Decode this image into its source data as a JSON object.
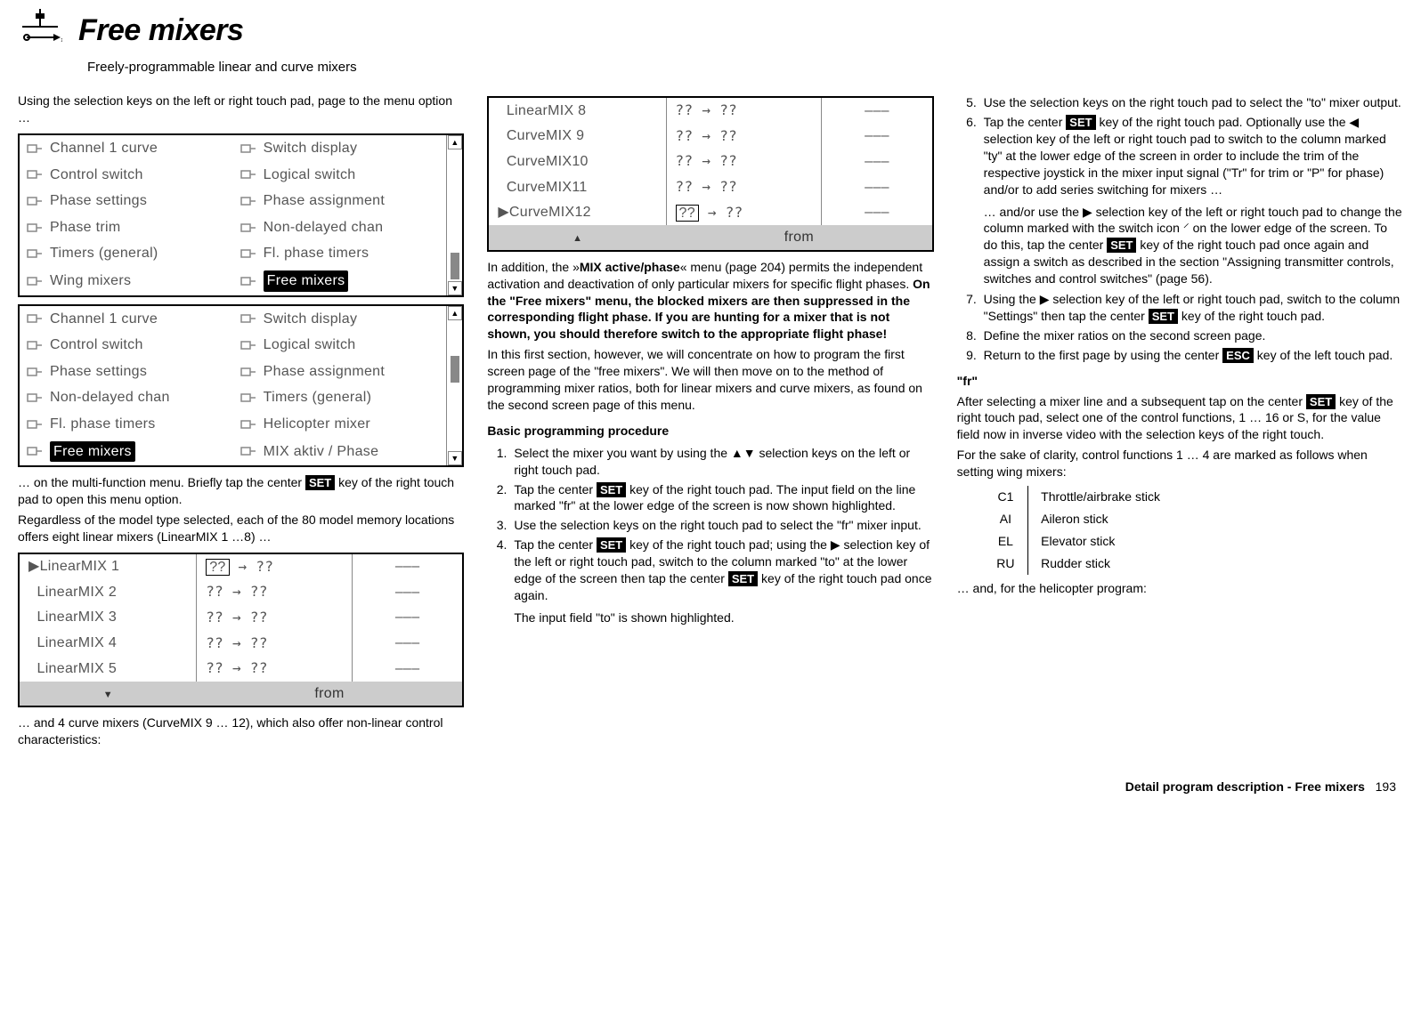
{
  "header": {
    "title": "Free mixers",
    "subtitle": "Freely-programmable linear and curve mixers"
  },
  "col1": {
    "intro": "Using the selection keys on the left or right touch pad, page to the menu option …",
    "menuA": {
      "left": [
        "Channel 1 curve",
        "Control switch",
        "Phase settings",
        "Phase trim",
        "Timers (general)",
        "Wing mixers"
      ],
      "right": [
        "Switch display",
        "Logical switch",
        "Phase assignment",
        "Non-delayed chan",
        "Fl. phase timers",
        "Free mixers"
      ],
      "highlight_right_index": 5
    },
    "menuB": {
      "left": [
        "Channel 1 curve",
        "Control switch",
        "Phase settings",
        "Non-delayed chan",
        "Fl. phase timers",
        "Free mixers"
      ],
      "right": [
        "Switch display",
        "Logical switch",
        "Phase assignment",
        "Timers (general)",
        "Helicopter mixer",
        "MIX aktiv / Phase"
      ],
      "highlight_left_index": 5
    },
    "para1a": "… on the multi-function menu. Briefly tap the center ",
    "para1b": " key of the right touch pad to open this menu option.",
    "para2": "Regardless of the model type selected, each of the 80 model memory locations offers eight linear mixers (LinearMIX 1 …8) …",
    "table1": {
      "rows": [
        {
          "name": "LinearMIX  1",
          "val": "?? → ??",
          "sel": true,
          "marker": true
        },
        {
          "name": "LinearMIX  2",
          "val": "?? → ??"
        },
        {
          "name": "LinearMIX  3",
          "val": "?? → ??"
        },
        {
          "name": "LinearMIX  4",
          "val": "?? → ??"
        },
        {
          "name": "LinearMIX  5",
          "val": "?? → ??"
        }
      ],
      "footer_arrow": "▼",
      "footer_label": "from"
    },
    "para3": "… and 4 curve mixers (CurveMIX 9 … 12), which also offer non-linear control characteristics:"
  },
  "col2": {
    "table2": {
      "rows": [
        {
          "name": "LinearMIX   8",
          "val": "?? → ??"
        },
        {
          "name": "CurveMIX  9",
          "val": "?? → ??"
        },
        {
          "name": "CurveMIX10",
          "val": "?? → ??"
        },
        {
          "name": "CurveMIX11",
          "val": "?? → ??"
        },
        {
          "name": "CurveMIX12",
          "val": "?? → ??",
          "sel": true,
          "marker": true
        }
      ],
      "footer_arrow": "▲",
      "footer_label": "from"
    },
    "p1a": "In addition, the »",
    "p1b": "MIX active/phase",
    "p1c": "« menu (page 204) permits the independent activation and deactivation of only particular mixers for specific flight phases. ",
    "p2": "On the \"Free mixers\" menu, the blocked mixers are then suppressed in the corresponding flight phase. If you are hunting for a mixer that is not shown, you should therefore switch to the appropriate flight phase!",
    "p3": "In this first section, however, we will concentrate on how to program the first screen page of the \"free mixers\". We will then move on to the method of programming mixer ratios, both for linear mixers and curve mixers, as found on the second screen page of this menu.",
    "proc_head": "Basic programming procedure",
    "steps": {
      "s1": "Select the mixer you want by using the ▲▼ selection keys on the left or right touch pad.",
      "s2a": "Tap the center ",
      "s2b": " key of the right touch pad. The input field on the line marked \"fr\" at the lower edge of the screen is now shown highlighted.",
      "s3": "Use the selection keys on the right touch pad to select the \"fr\" mixer input.",
      "s4a": "Tap the center ",
      "s4b": " key of the right touch pad; using the ▶ selection key of the left or right touch pad, switch to the column marked \"to\" at the lower edge of the screen then tap the center ",
      "s4c": " key of the right touch pad once again.",
      "s4d": "The input field \"to\" is shown highlighted."
    }
  },
  "col3": {
    "steps": {
      "s5": "Use the selection keys on the right touch pad to select the \"to\" mixer output.",
      "s6a": "Tap the center ",
      "s6b": " key of the right touch pad. Optionally use the ◀ selection key of the left or right touch pad to switch to the column marked \"ty\" at the lower edge of the screen in order to include the trim of the respective joystick in the mixer input signal (\"Tr\" for trim or \"P\" for phase) and/or to add series switching for mixers …",
      "s6c": "… and/or use the ▶ selection key of the left or right touch pad to change the column marked with the switch icon ⸍ on the lower edge of the screen. To do this, tap the center ",
      "s6d": " key of the right touch pad once again and assign a switch as described in the section \"Assigning transmitter controls, switches and control switches\" (page 56).",
      "s7a": "Using the ▶ selection key of the left or right touch pad, switch to the column \"Settings\" then tap the center ",
      "s7b": " key of the right touch pad.",
      "s8": "Define the mixer ratios on the second screen page.",
      "s9a": "Return to the first page by using the center ",
      "s9b": " key of the left touch pad."
    },
    "fr_head": "\"fr\"",
    "fr_p1a": "After selecting a mixer line and a subsequent tap on the center ",
    "fr_p1b": " key of the right touch pad, select one of the control functions, 1 … 16 or S, for the value field now in inverse video with the selection keys of the right touch.",
    "fr_p2": "For the sake of clarity, control functions 1 … 4 are marked as follows when setting wing mixers:",
    "ctrl_table": [
      [
        "C1",
        "Throttle/airbrake stick"
      ],
      [
        "AI",
        "Aileron stick"
      ],
      [
        "EL",
        "Elevator stick"
      ],
      [
        "RU",
        "Rudder stick"
      ]
    ],
    "fr_p3": "… and, for the helicopter program:"
  },
  "footer": {
    "label": "Detail program description - Free mixers",
    "page": "193"
  },
  "keys": {
    "set": "SET",
    "esc": "ESC"
  }
}
